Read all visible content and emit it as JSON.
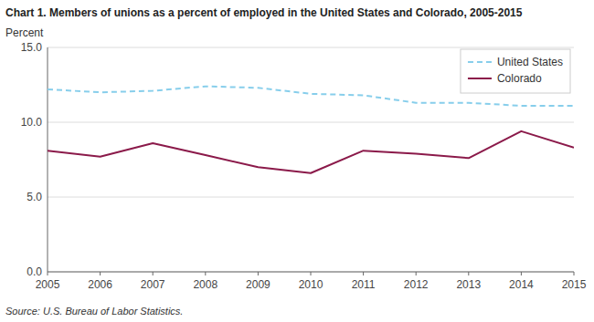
{
  "chart_data": {
    "type": "line",
    "title": "Chart 1. Members of unions as a percent of employed in the United States and Colorado, 2005-2015",
    "ylabel": "Percent",
    "annotations": [
      "Source: U.S. Bureau of Labor Statistics."
    ],
    "x": [
      2005,
      2006,
      2007,
      2008,
      2009,
      2010,
      2011,
      2012,
      2013,
      2014,
      2015
    ],
    "series": [
      {
        "name": "United States",
        "color": "#87CEEB",
        "line_style": "dashed",
        "values": [
          12.2,
          12.0,
          12.1,
          12.4,
          12.3,
          11.9,
          11.8,
          11.3,
          11.3,
          11.1,
          11.1
        ]
      },
      {
        "name": "Colorado",
        "color": "#8B1A4A",
        "line_style": "solid",
        "values": [
          8.1,
          7.7,
          8.6,
          7.8,
          7.0,
          6.6,
          8.1,
          7.9,
          7.6,
          9.4,
          8.3
        ]
      }
    ],
    "xlim": [
      2005,
      2015
    ],
    "xticks": [
      2005,
      2006,
      2007,
      2008,
      2009,
      2010,
      2011,
      2012,
      2013,
      2014,
      2015
    ],
    "ylim": [
      0,
      15.0
    ],
    "yticks": [
      {
        "value": 0.0,
        "label": "0.0"
      },
      {
        "value": 5.0,
        "label": "5.0"
      },
      {
        "value": 10.0,
        "label": "10.0"
      },
      {
        "value": 15.0,
        "label": "15.0"
      }
    ],
    "grid": true,
    "legend": "upper right"
  }
}
